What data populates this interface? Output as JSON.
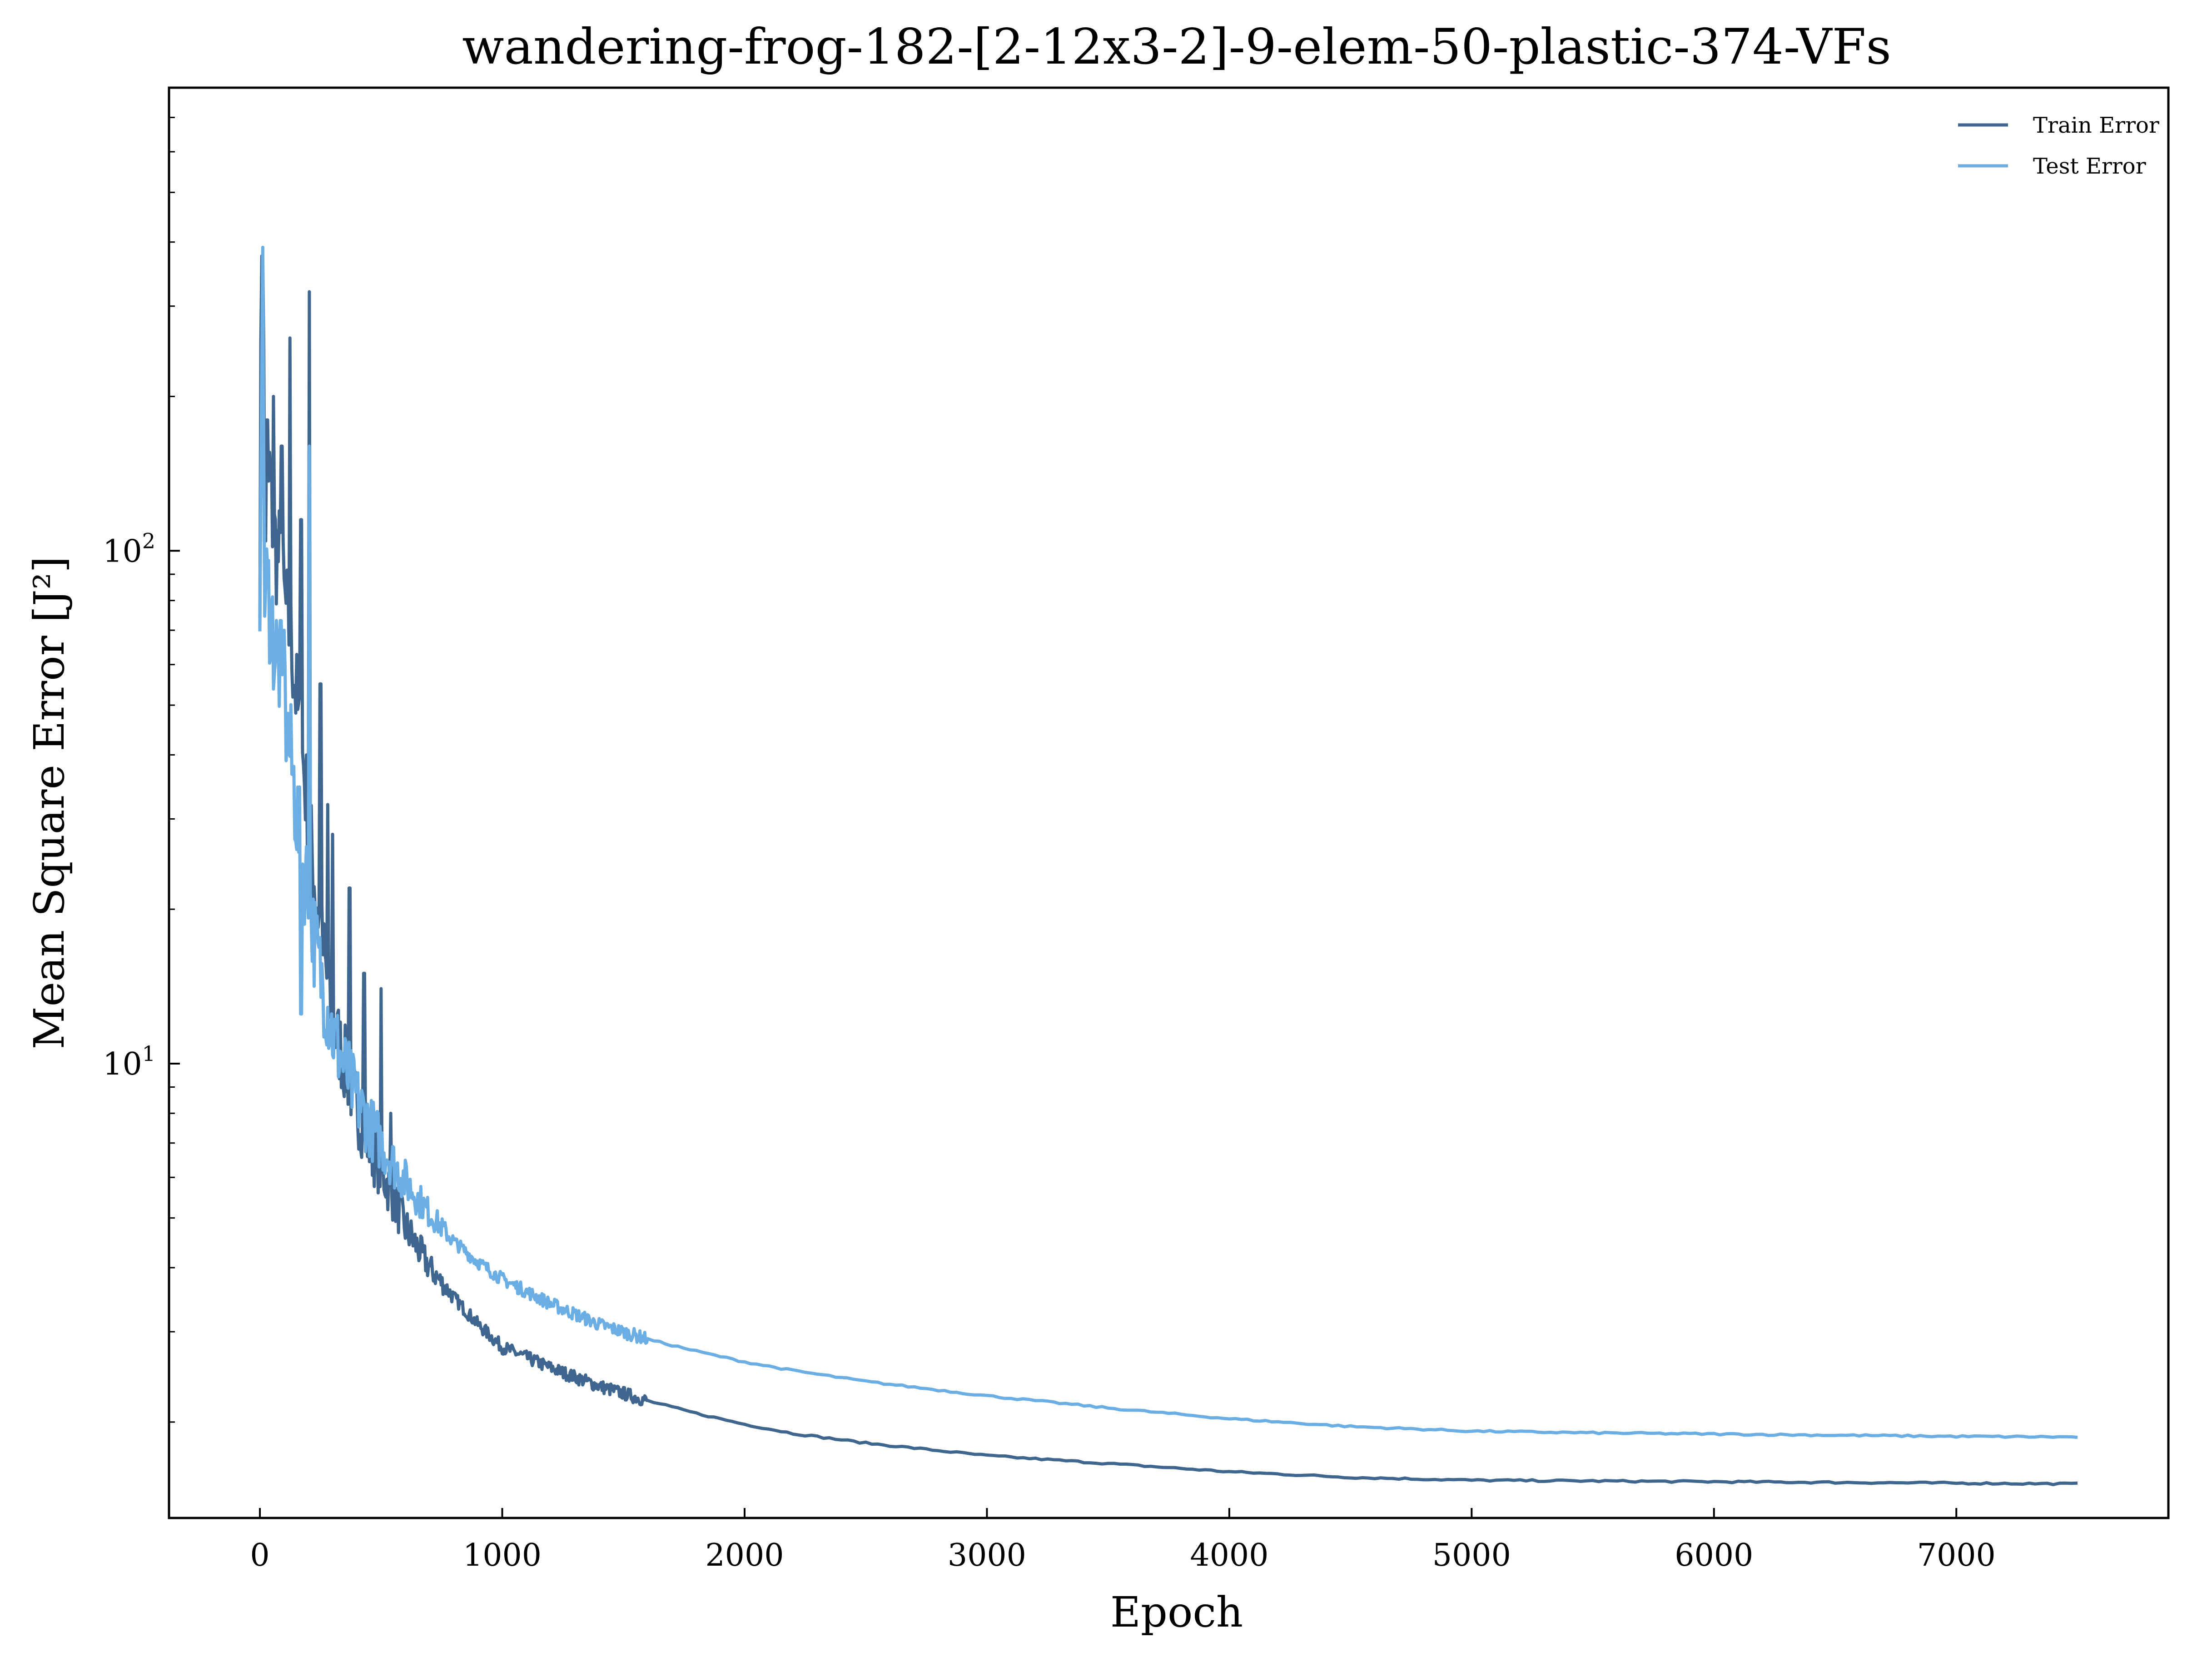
{
  "chart_data": {
    "type": "line",
    "title": "wandering-frog-182-[2-12x3-2]-9-elem-50-plastic-374-VFs",
    "xlabel": "Epoch",
    "ylabel": "Mean Square Error [J²]",
    "yscale": "log",
    "xlim": [
      -375,
      7875
    ],
    "ylim": [
      1.3,
      800
    ],
    "xticks": [
      0,
      1000,
      2000,
      3000,
      4000,
      5000,
      6000,
      7000
    ],
    "xtick_labels": [
      "0",
      "1000",
      "2000",
      "3000",
      "4000",
      "5000",
      "6000",
      "7000"
    ],
    "yticks": [
      10,
      100
    ],
    "ytick_labels": [
      {
        "base": "10",
        "exp": "1"
      },
      {
        "base": "10",
        "exp": "2"
      }
    ],
    "grid": false,
    "legend": "top-right",
    "series": [
      {
        "name": "Train Error",
        "color": "#3f668e",
        "x": [
          0,
          10,
          20,
          40,
          60,
          80,
          100,
          120,
          140,
          160,
          180,
          200,
          220,
          250,
          300,
          350,
          400,
          450,
          500,
          550,
          600,
          700,
          800,
          900,
          1000,
          1200,
          1400,
          1600,
          1800,
          2000,
          2200,
          2500,
          3000,
          3500,
          4000,
          4500,
          5000,
          5500,
          6000,
          6500,
          7000,
          7500
        ],
        "y": [
          95,
          620,
          110,
          140,
          105,
          95,
          80,
          70,
          60,
          45,
          38,
          30,
          24,
          18,
          12,
          10,
          8.2,
          7,
          6.2,
          5.5,
          4.8,
          4,
          3.5,
          3.1,
          2.8,
          2.55,
          2.35,
          2.2,
          2.08,
          1.98,
          1.9,
          1.82,
          1.72,
          1.66,
          1.6,
          1.56,
          1.54,
          1.535,
          1.53,
          1.525,
          1.52,
          1.515
        ]
      },
      {
        "name": "Test Error",
        "color": "#6aaee3",
        "x": [
          0,
          10,
          20,
          40,
          60,
          80,
          100,
          120,
          140,
          160,
          180,
          200,
          220,
          250,
          300,
          350,
          400,
          450,
          500,
          550,
          600,
          700,
          800,
          900,
          1000,
          1200,
          1400,
          1600,
          1800,
          2000,
          2200,
          2500,
          3000,
          3500,
          4000,
          4500,
          5000,
          5500,
          6000,
          6500,
          7000,
          7500
        ],
        "y": [
          90,
          400,
          85,
          80,
          65,
          60,
          50,
          42,
          35,
          28,
          24,
          22,
          18,
          15,
          11.5,
          9.8,
          8.5,
          7.6,
          7,
          6.4,
          5.9,
          5.1,
          4.5,
          4.1,
          3.8,
          3.4,
          3.1,
          2.9,
          2.75,
          2.62,
          2.52,
          2.4,
          2.25,
          2.13,
          2.03,
          1.96,
          1.92,
          1.905,
          1.895,
          1.885,
          1.875,
          1.87
        ]
      }
    ],
    "spikes": [
      {
        "series": 0,
        "x": 30,
        "y": 180
      },
      {
        "series": 0,
        "x": 55,
        "y": 200
      },
      {
        "series": 0,
        "x": 90,
        "y": 160
      },
      {
        "series": 0,
        "x": 125,
        "y": 260
      },
      {
        "series": 0,
        "x": 170,
        "y": 115
      },
      {
        "series": 0,
        "x": 205,
        "y": 320
      },
      {
        "series": 0,
        "x": 250,
        "y": 55
      },
      {
        "series": 0,
        "x": 280,
        "y": 32
      },
      {
        "series": 0,
        "x": 300,
        "y": 28
      },
      {
        "series": 0,
        "x": 370,
        "y": 22
      },
      {
        "series": 0,
        "x": 430,
        "y": 15
      },
      {
        "series": 0,
        "x": 500,
        "y": 14
      },
      {
        "series": 0,
        "x": 540,
        "y": 8
      },
      {
        "series": 1,
        "x": 205,
        "y": 160
      },
      {
        "series": 1,
        "x": 170,
        "y": 12.5
      },
      {
        "series": 1,
        "x": 100,
        "y": 70
      }
    ]
  }
}
